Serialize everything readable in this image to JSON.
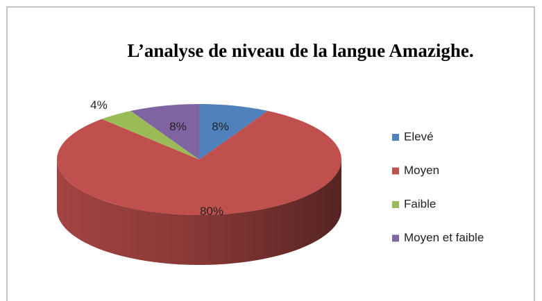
{
  "chart_data": {
    "type": "pie3d",
    "title": "L’analyse de niveau de la langue Amazighe.",
    "categories": [
      "Elevé",
      "Moyen",
      "Faible",
      "Moyen et faible"
    ],
    "values": [
      8,
      80,
      4,
      8
    ],
    "value_labels": [
      "8%",
      "80%",
      "4%",
      "8%"
    ],
    "colors": [
      "#4f81bd",
      "#c0504d",
      "#9bbb59",
      "#8064a2"
    ],
    "legend": "right"
  }
}
